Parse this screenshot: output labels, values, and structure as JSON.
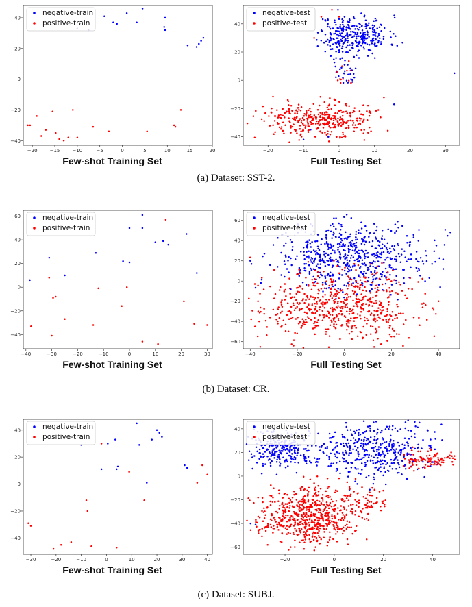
{
  "colors": {
    "negative": "#0000ff",
    "positive": "#ff0000",
    "axis": "#333333"
  },
  "captions": [
    "(a)  Dataset: SST-2.",
    "(b)  Dataset: CR.",
    "(c)  Dataset: SUBJ."
  ],
  "chart_data": [
    {
      "id": "sst2-train",
      "type": "scatter",
      "title": "Few-shot Training Set",
      "xlabel": "",
      "ylabel": "",
      "legend": "top-left",
      "grid": false,
      "xlim": [
        -22,
        20
      ],
      "ylim": [
        -43,
        48
      ],
      "xticks": [
        -20,
        -15,
        -10,
        -5,
        0,
        5,
        10,
        15,
        20
      ],
      "yticks": [
        -40,
        -20,
        0,
        20,
        40
      ],
      "series": [
        {
          "name": "negative-train",
          "color": "#0000ff",
          "scatter": true,
          "points": [
            [
              -10,
              33
            ],
            [
              -7.5,
              32
            ],
            [
              -4,
              41
            ],
            [
              -2,
              37
            ],
            [
              -1.2,
              36
            ],
            [
              1,
              43
            ],
            [
              3.2,
              37
            ],
            [
              4.5,
              46
            ],
            [
              9.5,
              40
            ],
            [
              9.3,
              34
            ],
            [
              9.5,
              32
            ],
            [
              14.5,
              22
            ],
            [
              16.5,
              21
            ],
            [
              17,
              23
            ],
            [
              17.5,
              25
            ],
            [
              18,
              27
            ]
          ]
        },
        {
          "name": "positive-train",
          "color": "#ff0000",
          "scatter": true,
          "points": [
            [
              -21,
              -30
            ],
            [
              -20.5,
              -30
            ],
            [
              -19,
              -24
            ],
            [
              -18,
              -37
            ],
            [
              -17,
              -33
            ],
            [
              -15.5,
              -21
            ],
            [
              -14.8,
              -35
            ],
            [
              -14,
              -39
            ],
            [
              -13,
              -40
            ],
            [
              -12,
              -38
            ],
            [
              -11,
              -20
            ],
            [
              -10,
              -38
            ],
            [
              -6.5,
              -31
            ],
            [
              -3,
              -34
            ],
            [
              5.5,
              -34
            ],
            [
              11.5,
              -30
            ],
            [
              11.8,
              -31
            ],
            [
              13,
              -20
            ]
          ]
        }
      ]
    },
    {
      "id": "sst2-test",
      "type": "scatter",
      "title": "Full Testing Set",
      "xlabel": "",
      "ylabel": "",
      "legend": "top-left",
      "grid": false,
      "xlim": [
        -27,
        34
      ],
      "ylim": [
        -46,
        53
      ],
      "xticks": [
        -20,
        -10,
        0,
        10,
        20,
        30
      ],
      "yticks": [
        -40,
        -20,
        0,
        20,
        40
      ],
      "clusters": [
        {
          "series": "negative-test",
          "n": 320,
          "cx": 4,
          "cy": 32,
          "sx": 5,
          "sy": 7,
          "xmin": -7,
          "xmax": 24,
          "ymin": 14,
          "ymax": 51,
          "seed": 11
        },
        {
          "series": "negative-test",
          "n": 30,
          "cx": 2,
          "cy": 6,
          "sx": 2.5,
          "sy": 5,
          "xmin": -2,
          "xmax": 6,
          "ymin": -6,
          "ymax": 17,
          "seed": 12
        },
        {
          "series": "positive-test",
          "n": 360,
          "cx": -5,
          "cy": -28,
          "sx": 8,
          "sy": 6,
          "xmin": -26,
          "xmax": 15,
          "ymin": -44,
          "ymax": -11,
          "seed": 13
        },
        {
          "series": "positive-test",
          "n": 12,
          "cx": 2,
          "cy": 5,
          "sx": 2,
          "sy": 5,
          "xmin": -1,
          "xmax": 6,
          "ymin": -5,
          "ymax": 14,
          "seed": 14
        }
      ],
      "series": [
        {
          "name": "negative-test",
          "color": "#0000ff",
          "scatter": true,
          "points": [
            [
              32.5,
              5
            ],
            [
              15.5,
              -17
            ],
            [
              -8,
              -35
            ],
            [
              -10,
              -42
            ],
            [
              -3,
              -40
            ]
          ]
        },
        {
          "name": "positive-test",
          "color": "#ff0000",
          "scatter": true,
          "points": [
            [
              -2,
              50
            ],
            [
              -5,
              45
            ],
            [
              -7,
              30
            ],
            [
              0,
              45
            ]
          ]
        }
      ]
    },
    {
      "id": "cr-train",
      "type": "scatter",
      "title": "Few-shot Training Set",
      "xlabel": "",
      "ylabel": "",
      "legend": "top-left",
      "grid": false,
      "xlim": [
        -41,
        32
      ],
      "ylim": [
        -52,
        65
      ],
      "xticks": [
        -40,
        -30,
        -20,
        -10,
        0,
        10,
        20,
        30
      ],
      "yticks": [
        -40,
        -20,
        0,
        20,
        40,
        60
      ],
      "series": [
        {
          "name": "negative-train",
          "color": "#0000ff",
          "scatter": true,
          "points": [
            [
              -38.5,
              6
            ],
            [
              -31,
              25
            ],
            [
              -25,
              10
            ],
            [
              -13,
              29
            ],
            [
              -2.5,
              22
            ],
            [
              0,
              50
            ],
            [
              0,
              21
            ],
            [
              5,
              61
            ],
            [
              5,
              50
            ],
            [
              10,
              38
            ],
            [
              13,
              39
            ],
            [
              15,
              36
            ],
            [
              22,
              45
            ],
            [
              26,
              12
            ]
          ]
        },
        {
          "name": "positive-train",
          "color": "#ff0000",
          "scatter": true,
          "points": [
            [
              -38,
              -33
            ],
            [
              -31,
              8
            ],
            [
              -30,
              -41
            ],
            [
              -29.5,
              -9
            ],
            [
              -28.5,
              -8
            ],
            [
              -25,
              -27
            ],
            [
              -14,
              -32
            ],
            [
              -12,
              -1
            ],
            [
              -3,
              -16
            ],
            [
              -1,
              0
            ],
            [
              5,
              -46
            ],
            [
              11,
              -48
            ],
            [
              14,
              57
            ],
            [
              21,
              -12
            ],
            [
              25,
              -31
            ],
            [
              30,
              -32
            ]
          ]
        }
      ]
    },
    {
      "id": "cr-test",
      "type": "scatter",
      "title": "Full Testing Set",
      "xlabel": "",
      "ylabel": "",
      "legend": "top-left",
      "grid": false,
      "xlim": [
        -43,
        49
      ],
      "ylim": [
        -67,
        70
      ],
      "xticks": [
        -40,
        -20,
        0,
        20,
        40
      ],
      "yticks": [
        -60,
        -40,
        -20,
        0,
        20,
        40,
        60
      ],
      "clusters": [
        {
          "series": "negative-test",
          "n": 620,
          "cx": 3,
          "cy": 25,
          "sx": 17,
          "sy": 17,
          "xmin": -40,
          "xmax": 47,
          "ymin": -25,
          "ymax": 67,
          "seed": 21
        },
        {
          "series": "positive-test",
          "n": 620,
          "cx": -2,
          "cy": -25,
          "sx": 16,
          "sy": 17,
          "xmin": -42,
          "xmax": 42,
          "ymin": -66,
          "ymax": 30,
          "seed": 22
        }
      ],
      "series": [
        {
          "name": "negative-test",
          "color": "#0000ff",
          "scatter": true,
          "points": [
            [
              -40,
              20
            ],
            [
              42,
              12
            ]
          ]
        },
        {
          "name": "positive-test",
          "color": "#ff0000",
          "scatter": true,
          "points": [
            [
              -38,
              -45
            ],
            [
              40,
              -20
            ]
          ]
        }
      ]
    },
    {
      "id": "subj-train",
      "type": "scatter",
      "title": "Few-shot Training Set",
      "xlabel": "",
      "ylabel": "",
      "legend": "top-left",
      "grid": false,
      "xlim": [
        -33,
        42
      ],
      "ylim": [
        -52,
        48
      ],
      "xticks": [
        -30,
        -20,
        -10,
        0,
        10,
        20,
        30,
        40
      ],
      "yticks": [
        -40,
        -20,
        0,
        20,
        40
      ],
      "series": [
        {
          "name": "negative-train",
          "color": "#0000ff",
          "scatter": true,
          "points": [
            [
              -10,
              29
            ],
            [
              -2,
              11
            ],
            [
              0.5,
              30
            ],
            [
              3.5,
              33
            ],
            [
              4,
              11
            ],
            [
              4.5,
              13
            ],
            [
              12,
              45
            ],
            [
              13,
              29
            ],
            [
              16,
              1
            ],
            [
              18,
              33
            ],
            [
              20,
              40
            ],
            [
              21,
              38
            ],
            [
              22,
              35
            ],
            [
              31,
              14
            ],
            [
              32,
              12
            ]
          ]
        },
        {
          "name": "positive-train",
          "color": "#ff0000",
          "scatter": true,
          "points": [
            [
              -31,
              -29
            ],
            [
              -30,
              -31
            ],
            [
              -21,
              -48
            ],
            [
              -18,
              -45
            ],
            [
              -14,
              -43
            ],
            [
              -8,
              -12
            ],
            [
              -7.5,
              -20
            ],
            [
              -6,
              -46
            ],
            [
              -2,
              30
            ],
            [
              4,
              -47
            ],
            [
              9,
              9
            ],
            [
              15,
              -12
            ],
            [
              36,
              1
            ],
            [
              38,
              14
            ],
            [
              40,
              7
            ]
          ]
        }
      ]
    },
    {
      "id": "subj-test",
      "type": "scatter",
      "title": "Full Testing Set",
      "xlabel": "",
      "ylabel": "",
      "legend": "top-left",
      "grid": false,
      "xlim": [
        -37,
        51
      ],
      "ylim": [
        -66,
        48
      ],
      "xticks": [
        -20,
        0,
        20,
        40
      ],
      "yticks": [
        -60,
        -40,
        -20,
        0,
        20,
        40
      ],
      "clusters": [
        {
          "series": "negative-test",
          "n": 260,
          "cx": -22,
          "cy": 22,
          "sx": 7,
          "sy": 8,
          "xmin": -36,
          "xmax": -5,
          "ymin": 0,
          "ymax": 45,
          "seed": 31
        },
        {
          "series": "negative-test",
          "n": 420,
          "cx": 15,
          "cy": 22,
          "sx": 13,
          "sy": 12,
          "xmin": -10,
          "xmax": 44,
          "ymin": -12,
          "ymax": 47,
          "seed": 32
        },
        {
          "series": "positive-test",
          "n": 640,
          "cx": -10,
          "cy": -33,
          "sx": 10,
          "sy": 12,
          "xmin": -36,
          "xmax": 22,
          "ymin": -63,
          "ymax": 5,
          "seed": 33
        },
        {
          "series": "positive-test",
          "n": 110,
          "cx": 38,
          "cy": 14,
          "sx": 6,
          "sy": 4,
          "xmin": 25,
          "xmax": 50,
          "ymin": 4,
          "ymax": 26,
          "seed": 34
        },
        {
          "series": "positive-test",
          "n": 50,
          "cx": 14,
          "cy": -22,
          "sx": 5,
          "sy": 8,
          "xmin": 5,
          "xmax": 24,
          "ymin": -38,
          "ymax": -5,
          "seed": 35
        }
      ],
      "series": [
        {
          "name": "negative-test",
          "color": "#0000ff",
          "scatter": true,
          "points": [
            [
              -34,
              -40
            ],
            [
              -32,
              -41
            ]
          ]
        },
        {
          "name": "positive-test",
          "color": "#ff0000",
          "scatter": true,
          "points": [
            [
              49,
              14
            ],
            [
              48,
              12
            ],
            [
              -30,
              30
            ]
          ]
        }
      ]
    }
  ]
}
